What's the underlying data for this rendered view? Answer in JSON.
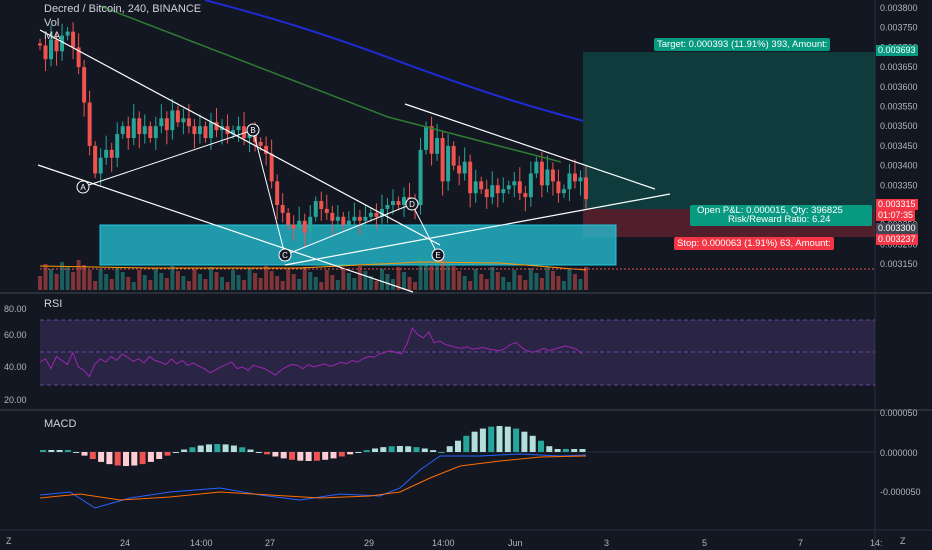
{
  "header": {
    "symbol_title": "Decred / Bitcoin, 240, BINANCE",
    "vol_label": "Vol",
    "ma_label": "MA"
  },
  "panes": {
    "rsi_label": "RSI",
    "macd_label": "MACD"
  },
  "trade": {
    "target_text": "Target: 0.000393 (11.91%) 393, Amount:",
    "pnl_text": "Open P&L: 0.000015, Qty: 396825",
    "rr_text": "Risk/Reward Ratio: 6.24",
    "stop_text": "Stop: 0.000063 (1.91%) 63, Amount:"
  },
  "price_axis": {
    "ticks": [
      "0.003800",
      "0.003750",
      "0.003700",
      "0.003650",
      "0.003600",
      "0.003550",
      "0.003500",
      "0.003450",
      "0.003400",
      "0.003350",
      "0.003300",
      "0.003250",
      "0.003200",
      "0.003150"
    ],
    "target_tag": "0.003693",
    "last_tag": "0.003315",
    "countdown_tag": "01:07:35",
    "entry_tag": "0.003300",
    "stop_tag": "0.003237"
  },
  "rsi_axis": {
    "ticks": [
      "80.00",
      "60.00",
      "40.00",
      "20.00"
    ]
  },
  "macd_axis": {
    "ticks": [
      "0.000050",
      "0.000000",
      "-0.000050"
    ]
  },
  "time_axis": {
    "ticks": [
      "24",
      "14:00",
      "27",
      "29",
      "14:00",
      "Jun",
      "3",
      "5",
      "7",
      "14:"
    ]
  },
  "pattern_points": [
    "A",
    "B",
    "C",
    "D",
    "E"
  ],
  "corner": {
    "left": "Z",
    "right": "Z"
  },
  "colors": {
    "background": "#131722",
    "up": "#26a69a",
    "down": "#ef5350",
    "target_green": "#089981",
    "stop_red": "#f23645",
    "cyan_zone": "#26c6da",
    "ma_blue": "#1e2bd6",
    "ma_green": "#2e7d32",
    "rsi_line": "#9c27b0",
    "macd_line": "#2962ff",
    "signal_line": "#ff6d00"
  }
}
